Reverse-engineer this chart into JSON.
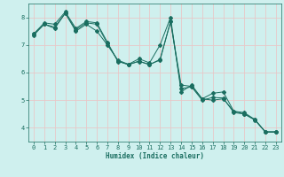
{
  "xlabel": "Humidex (Indice chaleur)",
  "background_color": "#cff0ee",
  "grid_color": "#e8c8c8",
  "line_color": "#1a6e60",
  "xlim": [
    -0.5,
    23.5
  ],
  "ylim": [
    3.5,
    8.5
  ],
  "yticks": [
    4,
    5,
    6,
    7,
    8
  ],
  "xticks": [
    0,
    1,
    2,
    3,
    4,
    5,
    6,
    7,
    8,
    9,
    10,
    11,
    12,
    13,
    14,
    15,
    16,
    17,
    18,
    19,
    20,
    21,
    22,
    23
  ],
  "series": [
    [
      7.4,
      7.8,
      7.75,
      8.2,
      7.6,
      7.85,
      7.8,
      7.1,
      6.4,
      6.3,
      6.5,
      6.35,
      7.0,
      8.0,
      5.3,
      5.55,
      5.05,
      5.25,
      5.3,
      4.6,
      4.55,
      4.3,
      3.85,
      3.85
    ],
    [
      7.4,
      7.75,
      7.6,
      8.15,
      7.5,
      7.75,
      7.5,
      7.0,
      6.45,
      6.3,
      6.4,
      6.3,
      6.45,
      7.85,
      5.55,
      5.5,
      5.05,
      5.0,
      5.05,
      4.6,
      4.5,
      4.3,
      3.85,
      3.85
    ],
    [
      7.35,
      7.75,
      7.65,
      8.15,
      7.55,
      7.8,
      7.75,
      7.05,
      6.42,
      6.28,
      6.42,
      6.28,
      6.48,
      7.85,
      5.42,
      5.48,
      5.0,
      5.1,
      5.08,
      4.55,
      4.5,
      4.28,
      3.85,
      3.85
    ]
  ],
  "figsize": [
    3.2,
    2.0
  ],
  "dpi": 100
}
